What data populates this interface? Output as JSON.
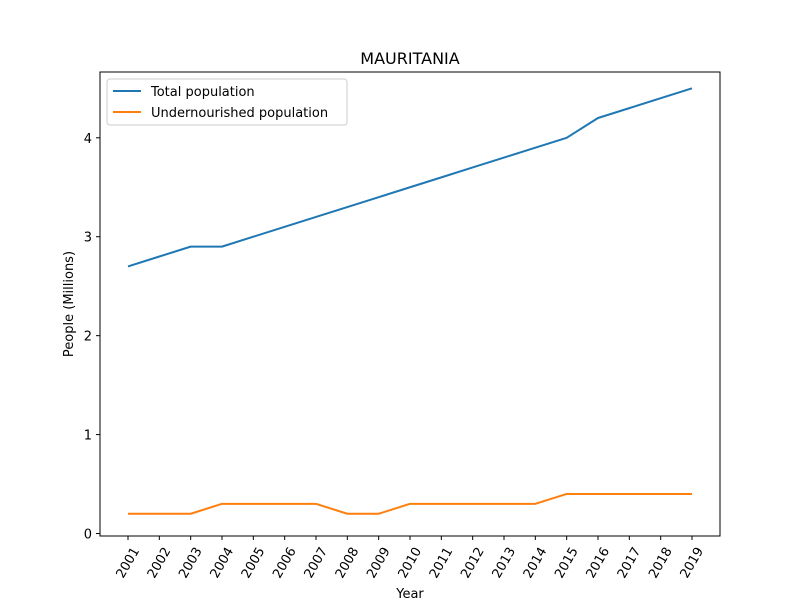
{
  "chart_data": {
    "type": "line",
    "title": "MAURITANIA",
    "xlabel": "Year",
    "ylabel": "People (Millions)",
    "categories": [
      "2001",
      "2002",
      "2003",
      "2004",
      "2005",
      "2006",
      "2007",
      "2008",
      "2009",
      "2010",
      "2011",
      "2012",
      "2013",
      "2014",
      "2015",
      "2016",
      "2017",
      "2018",
      "2019"
    ],
    "yticks": [
      0,
      1,
      2,
      3,
      4
    ],
    "ylim": [
      -0.025,
      4.665
    ],
    "grid": false,
    "legend_position": "top-left",
    "series": [
      {
        "name": "Total population",
        "color": "#1f77b4",
        "values": [
          2.7,
          2.8,
          2.9,
          2.9,
          3.0,
          3.1,
          3.2,
          3.3,
          3.4,
          3.5,
          3.6,
          3.7,
          3.8,
          3.9,
          4.0,
          4.2,
          4.3,
          4.4,
          4.5
        ]
      },
      {
        "name": "Undernourished population",
        "color": "#ff7f0e",
        "values": [
          0.2,
          0.2,
          0.2,
          0.3,
          0.3,
          0.3,
          0.3,
          0.2,
          0.2,
          0.3,
          0.3,
          0.3,
          0.3,
          0.3,
          0.4,
          0.4,
          0.4,
          0.4,
          0.4
        ]
      }
    ]
  }
}
